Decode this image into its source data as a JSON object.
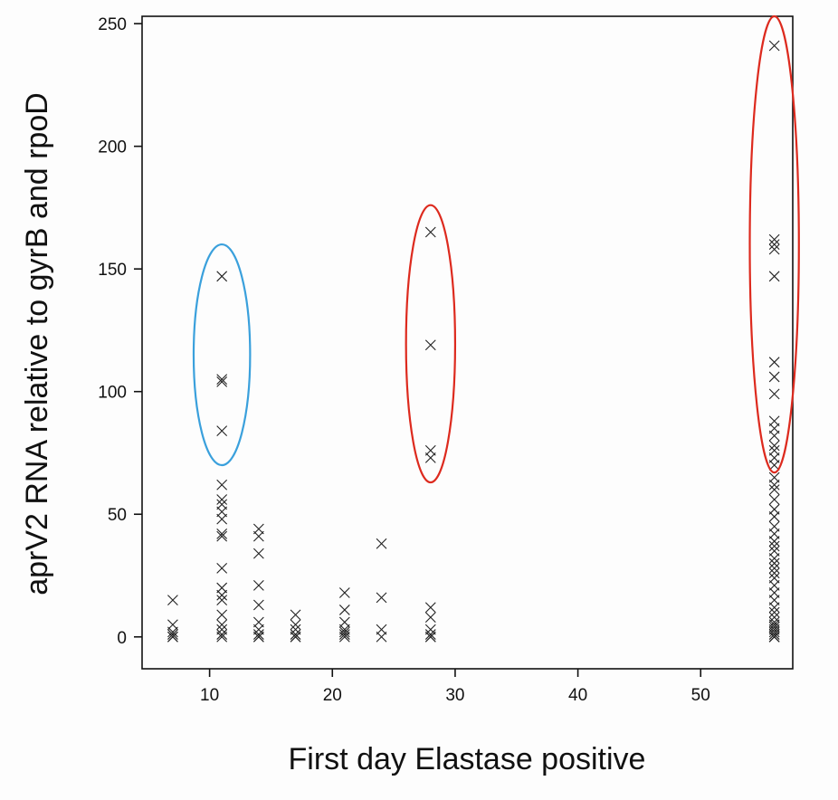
{
  "chart_data": {
    "type": "scatter",
    "title": "",
    "xlabel": "First day Elastase positive",
    "ylabel": "aprV2 RNA relative to gyrB and rpoD",
    "xlim": [
      4.5,
      57.5
    ],
    "ylim": [
      -13,
      253
    ],
    "xticks": [
      10,
      20,
      30,
      40,
      50
    ],
    "yticks": [
      0,
      50,
      100,
      150,
      200,
      250
    ],
    "grid": false,
    "legend": "none",
    "marker": "x",
    "marker_color": "#222222",
    "series": [
      {
        "points": [
          [
            7,
            15
          ],
          [
            7,
            5
          ],
          [
            7,
            2
          ],
          [
            7,
            1
          ],
          [
            7,
            0
          ],
          [
            7,
            0
          ],
          [
            11,
            147
          ],
          [
            11,
            105
          ],
          [
            11,
            104
          ],
          [
            11,
            84
          ],
          [
            11,
            62
          ],
          [
            11,
            56
          ],
          [
            11,
            54
          ],
          [
            11,
            51
          ],
          [
            11,
            48
          ],
          [
            11,
            42
          ],
          [
            11,
            41
          ],
          [
            11,
            28
          ],
          [
            11,
            20
          ],
          [
            11,
            17
          ],
          [
            11,
            15
          ],
          [
            11,
            9
          ],
          [
            11,
            5
          ],
          [
            11,
            3
          ],
          [
            11,
            1
          ],
          [
            11,
            0
          ],
          [
            14,
            44
          ],
          [
            14,
            41
          ],
          [
            14,
            34
          ],
          [
            14,
            21
          ],
          [
            14,
            13
          ],
          [
            14,
            6
          ],
          [
            14,
            3
          ],
          [
            14,
            1
          ],
          [
            14,
            0
          ],
          [
            14,
            0
          ],
          [
            17,
            9
          ],
          [
            17,
            5
          ],
          [
            17,
            3
          ],
          [
            17,
            1
          ],
          [
            17,
            0
          ],
          [
            17,
            0
          ],
          [
            21,
            18
          ],
          [
            21,
            11
          ],
          [
            21,
            6
          ],
          [
            21,
            3
          ],
          [
            21,
            2
          ],
          [
            21,
            1
          ],
          [
            21,
            0
          ],
          [
            24,
            38
          ],
          [
            24,
            16
          ],
          [
            24,
            3
          ],
          [
            24,
            0
          ],
          [
            28,
            165
          ],
          [
            28,
            119
          ],
          [
            28,
            76
          ],
          [
            28,
            73
          ],
          [
            28,
            12
          ],
          [
            28,
            8
          ],
          [
            28,
            3
          ],
          [
            28,
            1
          ],
          [
            28,
            0
          ],
          [
            28,
            0
          ],
          [
            56,
            241
          ],
          [
            56,
            162
          ],
          [
            56,
            160
          ],
          [
            56,
            158
          ],
          [
            56,
            147
          ],
          [
            56,
            112
          ],
          [
            56,
            106
          ],
          [
            56,
            99
          ],
          [
            56,
            88
          ],
          [
            56,
            85
          ],
          [
            56,
            82
          ],
          [
            56,
            78
          ],
          [
            56,
            76
          ],
          [
            56,
            73
          ],
          [
            56,
            70
          ],
          [
            56,
            65
          ],
          [
            56,
            62
          ],
          [
            56,
            60
          ],
          [
            56,
            56
          ],
          [
            56,
            52
          ],
          [
            56,
            49
          ],
          [
            56,
            45
          ],
          [
            56,
            42
          ],
          [
            56,
            39
          ],
          [
            56,
            37
          ],
          [
            56,
            35
          ],
          [
            56,
            32
          ],
          [
            56,
            30
          ],
          [
            56,
            28
          ],
          [
            56,
            26
          ],
          [
            56,
            24
          ],
          [
            56,
            21
          ],
          [
            56,
            18
          ],
          [
            56,
            15
          ],
          [
            56,
            12
          ],
          [
            56,
            10
          ],
          [
            56,
            8
          ],
          [
            56,
            6
          ],
          [
            56,
            5
          ],
          [
            56,
            4
          ],
          [
            56,
            3
          ],
          [
            56,
            2
          ],
          [
            56,
            1
          ],
          [
            56,
            0
          ],
          [
            56,
            0
          ],
          [
            56,
            0
          ]
        ]
      }
    ],
    "highlight_ellipses": [
      {
        "cx": 11,
        "cy": 115,
        "rx": 2.3,
        "ry": 45,
        "color": "#3aa0dc"
      },
      {
        "cx": 28,
        "cy": 119.5,
        "rx": 2.0,
        "ry": 56.5,
        "color": "#dd2a1e"
      },
      {
        "cx": 56,
        "cy": 160,
        "rx": 2.0,
        "ry": 93,
        "color": "#dd2a1e"
      }
    ]
  }
}
